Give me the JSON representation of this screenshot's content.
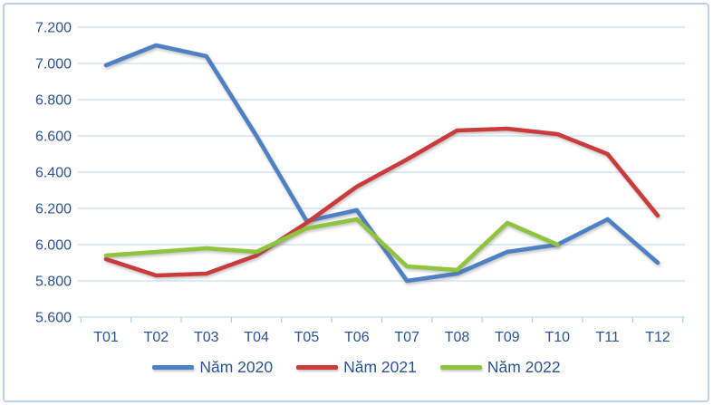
{
  "chart_data": {
    "type": "line",
    "title": "",
    "xlabel": "",
    "ylabel": "",
    "categories": [
      "T01",
      "T02",
      "T03",
      "T04",
      "T05",
      "T06",
      "T07",
      "T08",
      "T09",
      "T10",
      "T11",
      "T12"
    ],
    "series": [
      {
        "name": "Năm 2020",
        "color": "#4E80C4",
        "values": [
          6990,
          7100,
          7040,
          6600,
          6130,
          6190,
          5800,
          5840,
          5960,
          6000,
          6140,
          5900
        ]
      },
      {
        "name": "Năm 2021",
        "color": "#CB3B3B",
        "values": [
          5920,
          5830,
          5840,
          5940,
          6120,
          6320,
          6470,
          6630,
          6640,
          6610,
          6500,
          6160
        ]
      },
      {
        "name": "Năm 2022",
        "color": "#8EC43F",
        "values": [
          5940,
          5960,
          5980,
          5960,
          6090,
          6140,
          5880,
          5860,
          6120,
          6000,
          null,
          null
        ]
      }
    ],
    "y_axis": {
      "min": 5600,
      "max": 7200,
      "step": 200,
      "tick_labels": [
        "7.200",
        "7.000",
        "6.800",
        "6.600",
        "6.400",
        "6.200",
        "6.000",
        "5.800",
        "5.600"
      ]
    },
    "grid": "horizontal",
    "legend_position": "bottom"
  },
  "colors": {
    "axis_text": "#2A5495",
    "gridline": "#CADEF2",
    "tick": "#B7CFE9",
    "border": "#BCD2EA",
    "background": "#FFFFFF"
  }
}
